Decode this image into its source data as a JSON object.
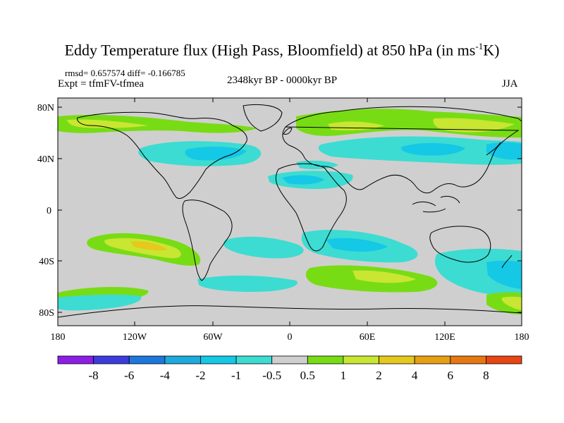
{
  "title": {
    "main": "Eddy Temperature flux (High Pass, Bloomfield) at 850 hPa (in ms",
    "sup": "-1",
    "tail": "K)"
  },
  "stats": "rmsd= 0.657574 diff= -0.166785",
  "experiment": "Expt = tfmFV-tfmea",
  "period": "2348kyr BP - 0000kyr BP",
  "season": "JJA",
  "axes": {
    "y_labels": [
      "80N",
      "40N",
      "0",
      "40S",
      "80S"
    ],
    "x_labels": [
      "180",
      "120W",
      "60W",
      "0",
      "60E",
      "120E",
      "180"
    ]
  },
  "colorbar": {
    "colors": [
      "#8c1ee6",
      "#3c3cdc",
      "#1e78dc",
      "#1eaadc",
      "#14c8e6",
      "#3cdcd2",
      "#cfcfcf",
      "#78dc14",
      "#c8e632",
      "#e6c81e",
      "#e6a014",
      "#e67814",
      "#e64614"
    ],
    "labels": [
      "-8",
      "-6",
      "-4",
      "-2",
      "-1",
      "-0.5",
      "0.5",
      "1",
      "2",
      "4",
      "6",
      "8"
    ]
  }
}
